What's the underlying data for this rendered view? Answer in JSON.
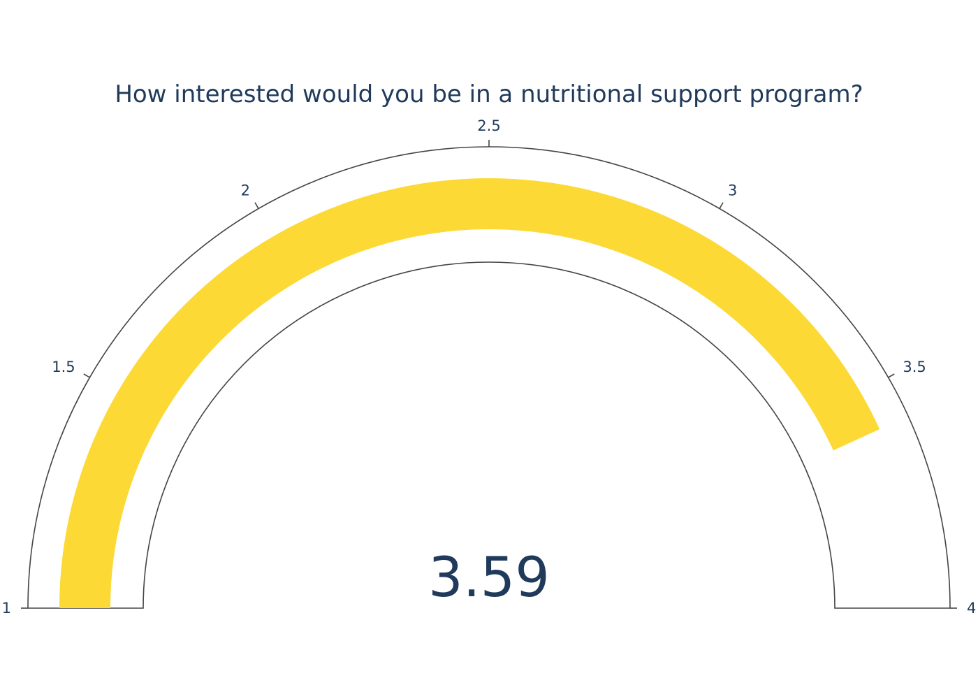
{
  "chart_data": {
    "type": "gauge",
    "title": "How interested would you be in a nutritional support program?",
    "value": 3.59,
    "value_label": "3.59",
    "range": [
      1,
      4
    ],
    "ticks": [
      {
        "value": 1,
        "label": "1"
      },
      {
        "value": 1.5,
        "label": "1.5"
      },
      {
        "value": 2,
        "label": "2"
      },
      {
        "value": 2.5,
        "label": "2.5"
      },
      {
        "value": 3,
        "label": "3"
      },
      {
        "value": 3.5,
        "label": "3.5"
      },
      {
        "value": 4,
        "label": "4"
      }
    ],
    "bar_color": "#fcd934",
    "outline_color": "#444444",
    "text_color": "#1f3a5a"
  }
}
